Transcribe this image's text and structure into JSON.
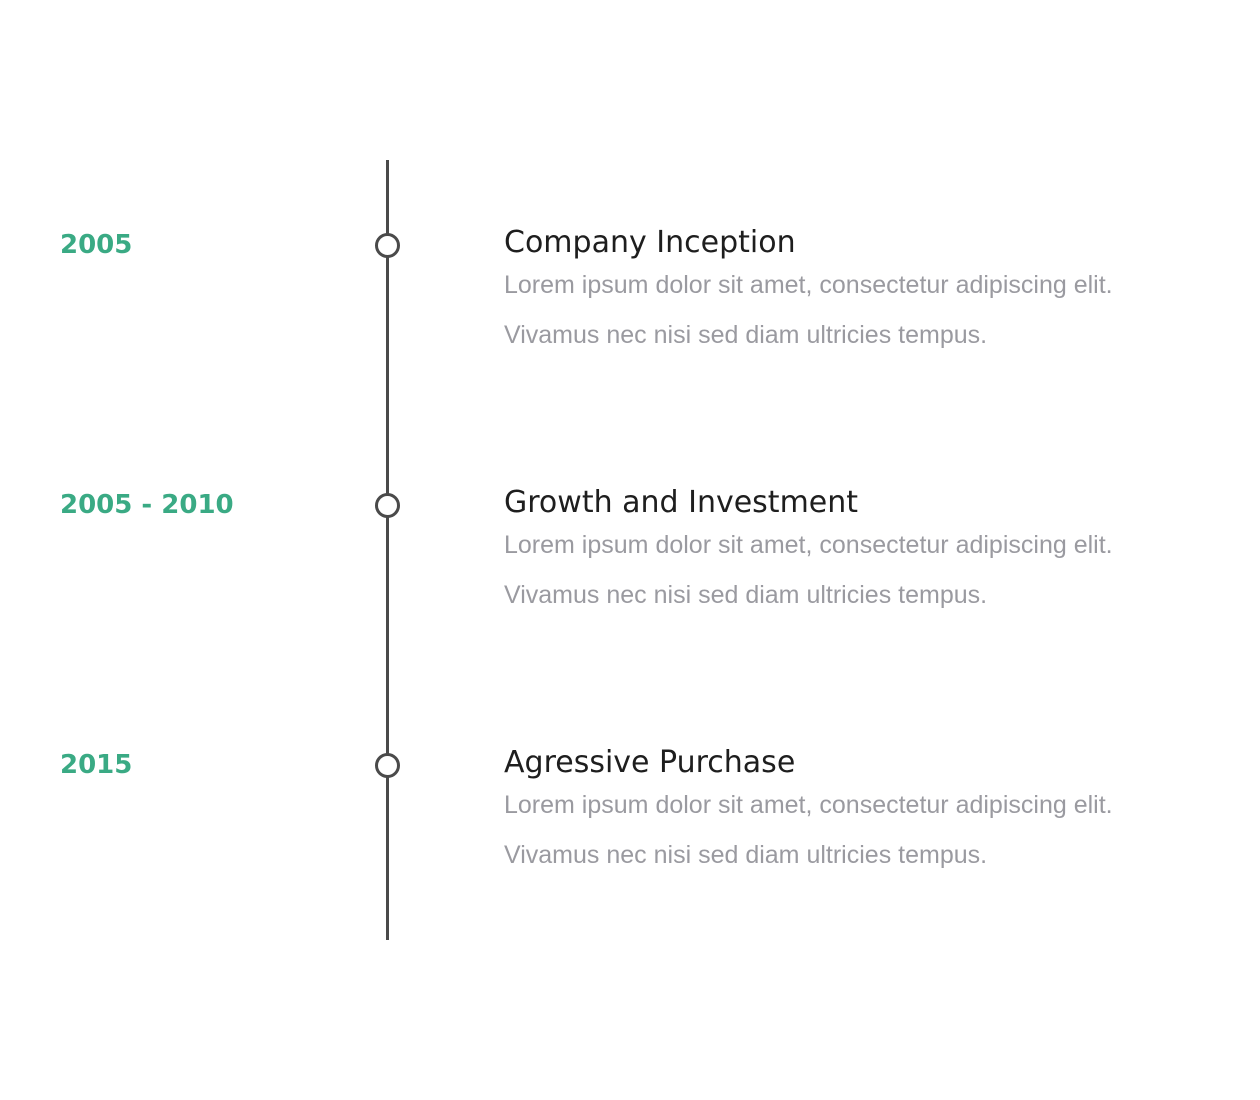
{
  "timeline": {
    "colors": {
      "date": "#3aaa84",
      "line": "#4a4a4a",
      "title": "#1e1e1e",
      "text": "#9a9aa0"
    },
    "items": [
      {
        "date": "2005",
        "title": "Company Inception",
        "text_line1": "Lorem ipsum dolor sit amet, consectetur adipiscing elit.",
        "text_line2": "Vivamus nec nisi sed diam ultricies tempus."
      },
      {
        "date": "2005 - 2010",
        "title": "Growth and Investment",
        "text_line1": "Lorem ipsum dolor sit amet, consectetur adipiscing elit.",
        "text_line2": "Vivamus nec nisi sed diam ultricies tempus."
      },
      {
        "date": "2015",
        "title": "Agressive Purchase",
        "text_line1": "Lorem ipsum dolor sit amet, consectetur adipiscing elit.",
        "text_line2": "Vivamus nec nisi sed diam ultricies tempus."
      }
    ]
  }
}
